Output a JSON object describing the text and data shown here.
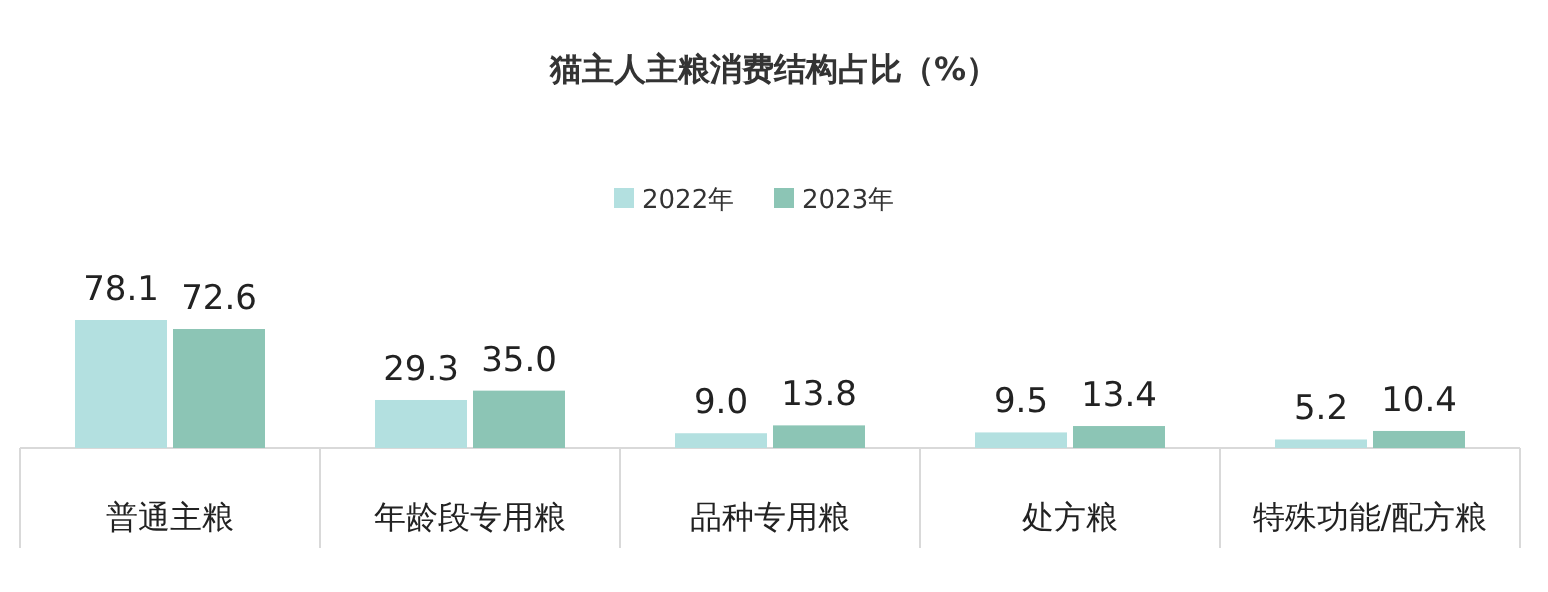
{
  "chart_data": {
    "type": "bar",
    "title": "猫主人主粮消费结构占比（%）",
    "categories": [
      "普通主粮",
      "年龄段专用粮",
      "品种专用粮",
      "处方粮",
      "特殊功能/配方粮"
    ],
    "series": [
      {
        "name": "2022年",
        "color": "#b3e0e0",
        "values": [
          78.1,
          29.3,
          9.0,
          9.5,
          5.2
        ],
        "value_labels": [
          "78.1",
          "29.3",
          "9.0",
          "9.5",
          "5.2"
        ]
      },
      {
        "name": "2023年",
        "color": "#8cc5b5",
        "values": [
          72.6,
          35.0,
          13.8,
          13.4,
          10.4
        ],
        "value_labels": [
          "72.6",
          "35.0",
          "13.8",
          "13.4",
          "10.4"
        ]
      }
    ],
    "legend": "top"
  }
}
